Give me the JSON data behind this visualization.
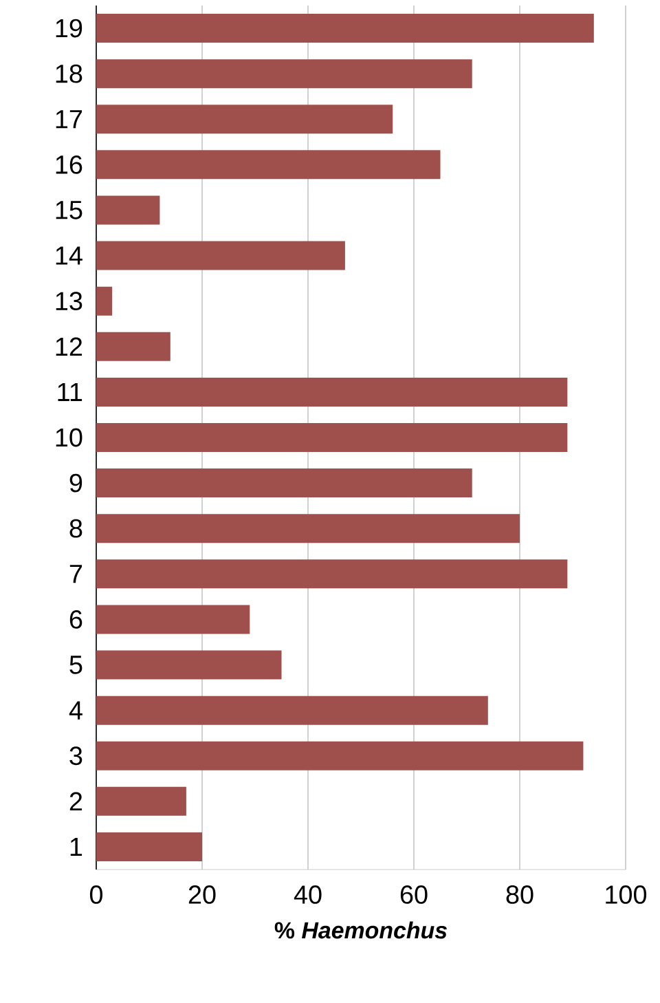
{
  "chart_data": {
    "type": "bar",
    "orientation": "horizontal",
    "categories": [
      "19",
      "18",
      "17",
      "16",
      "15",
      "14",
      "13",
      "12",
      "11",
      "10",
      "9",
      "8",
      "7",
      "6",
      "5",
      "4",
      "3",
      "2",
      "1"
    ],
    "values": [
      94,
      71,
      56,
      65,
      12,
      47,
      3,
      14,
      89,
      89,
      71,
      80,
      89,
      29,
      35,
      74,
      92,
      17,
      20
    ],
    "color": "#a0504c",
    "xlabel": "% *Haemonchus*",
    "xlim": [
      0,
      100
    ],
    "xticks": [
      0,
      20,
      40,
      60,
      80,
      100
    ],
    "grid": "x"
  }
}
